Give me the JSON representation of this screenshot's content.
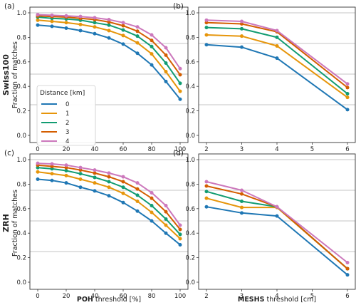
{
  "figure": {
    "row_titles": [
      "Swiss100",
      "ZRH"
    ],
    "ylabel": "Fraction of matches",
    "xlabel_left_bold": "POH",
    "xlabel_left_rest": "threshold [%]",
    "xlabel_right_bold": "MESHS",
    "xlabel_right_rest": "threshold [cm]",
    "legend": {
      "title": "Distance [km]",
      "entries": [
        "0",
        "1",
        "2",
        "3",
        "4"
      ]
    },
    "series_colors": [
      "#1f77b4",
      "#e6950a",
      "#129c72",
      "#d45e00",
      "#cc78bc"
    ]
  },
  "chart_data": [
    {
      "panel": "(a)",
      "type": "line",
      "xlim": [
        0,
        100
      ],
      "ylim": [
        0.0,
        1.0
      ],
      "xticks": [
        0,
        20,
        40,
        60,
        80,
        100
      ],
      "yticks": [
        0.0,
        0.2,
        0.4,
        0.6,
        0.8,
        1.0
      ],
      "hlines": [
        0.25,
        0.5,
        0.75,
        1.0
      ],
      "x": [
        0,
        10,
        20,
        30,
        40,
        50,
        60,
        70,
        80,
        90,
        100
      ],
      "series": [
        {
          "name": "0",
          "color": "#1f77b4",
          "values": [
            0.9,
            0.89,
            0.875,
            0.855,
            0.83,
            0.795,
            0.745,
            0.67,
            0.575,
            0.44,
            0.295
          ]
        },
        {
          "name": "1",
          "color": "#e6950a",
          "values": [
            0.94,
            0.93,
            0.92,
            0.905,
            0.885,
            0.855,
            0.815,
            0.755,
            0.665,
            0.52,
            0.36
          ]
        },
        {
          "name": "2",
          "color": "#129c72",
          "values": [
            0.965,
            0.955,
            0.95,
            0.94,
            0.92,
            0.9,
            0.86,
            0.81,
            0.725,
            0.59,
            0.425
          ]
        },
        {
          "name": "3",
          "color": "#d45e00",
          "values": [
            0.975,
            0.97,
            0.965,
            0.955,
            0.945,
            0.925,
            0.895,
            0.85,
            0.775,
            0.655,
            0.495
          ]
        },
        {
          "name": "4",
          "color": "#cc78bc",
          "values": [
            0.985,
            0.98,
            0.975,
            0.97,
            0.96,
            0.945,
            0.92,
            0.885,
            0.82,
            0.715,
            0.545
          ]
        }
      ]
    },
    {
      "panel": "(b)",
      "type": "line",
      "xlim": [
        2,
        6
      ],
      "ylim": [
        0.0,
        1.0
      ],
      "xticks": [
        2,
        3,
        4,
        5,
        6
      ],
      "yticks": [
        0.0,
        0.2,
        0.4,
        0.6,
        0.8,
        1.0
      ],
      "hlines": [
        0.25,
        0.5,
        0.75,
        1.0
      ],
      "x": [
        2,
        3,
        4,
        6
      ],
      "series": [
        {
          "name": "0",
          "color": "#1f77b4",
          "values": [
            0.74,
            0.72,
            0.63,
            0.21
          ]
        },
        {
          "name": "1",
          "color": "#e6950a",
          "values": [
            0.82,
            0.81,
            0.73,
            0.31
          ]
        },
        {
          "name": "2",
          "color": "#129c72",
          "values": [
            0.88,
            0.87,
            0.8,
            0.34
          ]
        },
        {
          "name": "3",
          "color": "#d45e00",
          "values": [
            0.92,
            0.91,
            0.845,
            0.39
          ]
        },
        {
          "name": "4",
          "color": "#cc78bc",
          "values": [
            0.94,
            0.93,
            0.855,
            0.42
          ]
        }
      ]
    },
    {
      "panel": "(c)",
      "type": "line",
      "xlim": [
        0,
        100
      ],
      "ylim": [
        0.0,
        1.0
      ],
      "xticks": [
        0,
        20,
        40,
        60,
        80,
        100
      ],
      "yticks": [
        0.0,
        0.2,
        0.4,
        0.6,
        0.8,
        1.0
      ],
      "hlines": [
        0.25,
        0.5,
        0.75,
        1.0
      ],
      "x": [
        0,
        10,
        20,
        30,
        40,
        50,
        60,
        70,
        80,
        90,
        100
      ],
      "series": [
        {
          "name": "0",
          "color": "#1f77b4",
          "values": [
            0.84,
            0.83,
            0.81,
            0.775,
            0.745,
            0.705,
            0.65,
            0.58,
            0.5,
            0.4,
            0.305
          ]
        },
        {
          "name": "1",
          "color": "#e6950a",
          "values": [
            0.9,
            0.885,
            0.87,
            0.84,
            0.81,
            0.775,
            0.725,
            0.66,
            0.57,
            0.465,
            0.355
          ]
        },
        {
          "name": "2",
          "color": "#129c72",
          "values": [
            0.935,
            0.925,
            0.91,
            0.885,
            0.855,
            0.82,
            0.775,
            0.71,
            0.625,
            0.515,
            0.39
          ]
        },
        {
          "name": "3",
          "color": "#d45e00",
          "values": [
            0.955,
            0.945,
            0.935,
            0.915,
            0.89,
            0.86,
            0.82,
            0.76,
            0.685,
            0.575,
            0.43
          ]
        },
        {
          "name": "4",
          "color": "#cc78bc",
          "values": [
            0.97,
            0.965,
            0.955,
            0.935,
            0.915,
            0.89,
            0.86,
            0.81,
            0.73,
            0.625,
            0.465
          ]
        }
      ]
    },
    {
      "panel": "(d)",
      "type": "line",
      "xlim": [
        2,
        6
      ],
      "ylim": [
        0.0,
        1.0
      ],
      "xticks": [
        2,
        3,
        4,
        5,
        6
      ],
      "yticks": [
        0.0,
        0.2,
        0.4,
        0.6,
        0.8,
        1.0
      ],
      "hlines": [
        0.25,
        0.5,
        0.75,
        1.0
      ],
      "x": [
        2,
        3,
        4,
        6
      ],
      "series": [
        {
          "name": "0",
          "color": "#1f77b4",
          "values": [
            0.615,
            0.565,
            0.54,
            0.06
          ]
        },
        {
          "name": "1",
          "color": "#e6950a",
          "values": [
            0.685,
            0.61,
            0.61,
            0.11
          ]
        },
        {
          "name": "2",
          "color": "#129c72",
          "values": [
            0.74,
            0.66,
            0.615,
            0.11
          ]
        },
        {
          "name": "3",
          "color": "#d45e00",
          "values": [
            0.785,
            0.72,
            0.615,
            0.11
          ]
        },
        {
          "name": "4",
          "color": "#cc78bc",
          "values": [
            0.82,
            0.75,
            0.615,
            0.16
          ]
        }
      ]
    }
  ]
}
